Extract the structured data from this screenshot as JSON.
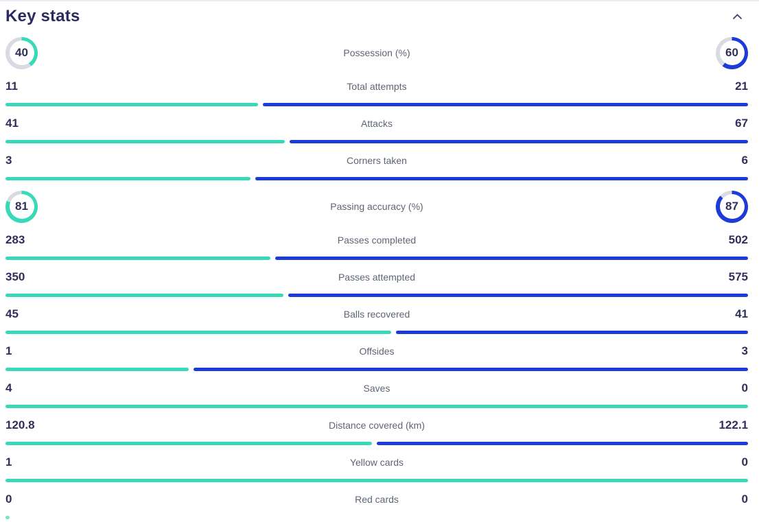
{
  "panel": {
    "title": "Key stats",
    "collapse_icon": "chevron-up-icon"
  },
  "colors": {
    "home": "#38d9b9",
    "away": "#1c3bd8",
    "ring_track": "#d8dbe1",
    "value_text": "#302f5c",
    "label_text": "#5d6474",
    "title_text": "#2b2a63"
  },
  "stats": [
    {
      "type": "ring",
      "label": "Possession (%)",
      "home": "40",
      "away": "60"
    },
    {
      "type": "bar",
      "label": "Total attempts",
      "home": "11",
      "away": "21"
    },
    {
      "type": "bar",
      "label": "Attacks",
      "home": "41",
      "away": "67"
    },
    {
      "type": "bar",
      "label": "Corners taken",
      "home": "3",
      "away": "6"
    },
    {
      "type": "ring",
      "label": "Passing accuracy (%)",
      "home": "81",
      "away": "87"
    },
    {
      "type": "bar",
      "label": "Passes completed",
      "home": "283",
      "away": "502"
    },
    {
      "type": "bar",
      "label": "Passes attempted",
      "home": "350",
      "away": "575"
    },
    {
      "type": "bar",
      "label": "Balls recovered",
      "home": "45",
      "away": "41"
    },
    {
      "type": "bar",
      "label": "Offsides",
      "home": "1",
      "away": "3"
    },
    {
      "type": "bar",
      "label": "Saves",
      "home": "4",
      "away": "0"
    },
    {
      "type": "bar",
      "label": "Distance covered (km)",
      "home": "120.8",
      "away": "122.1"
    },
    {
      "type": "bar",
      "label": "Yellow cards",
      "home": "1",
      "away": "0"
    },
    {
      "type": "bar",
      "label": "Red cards",
      "home": "0",
      "away": "0"
    }
  ]
}
